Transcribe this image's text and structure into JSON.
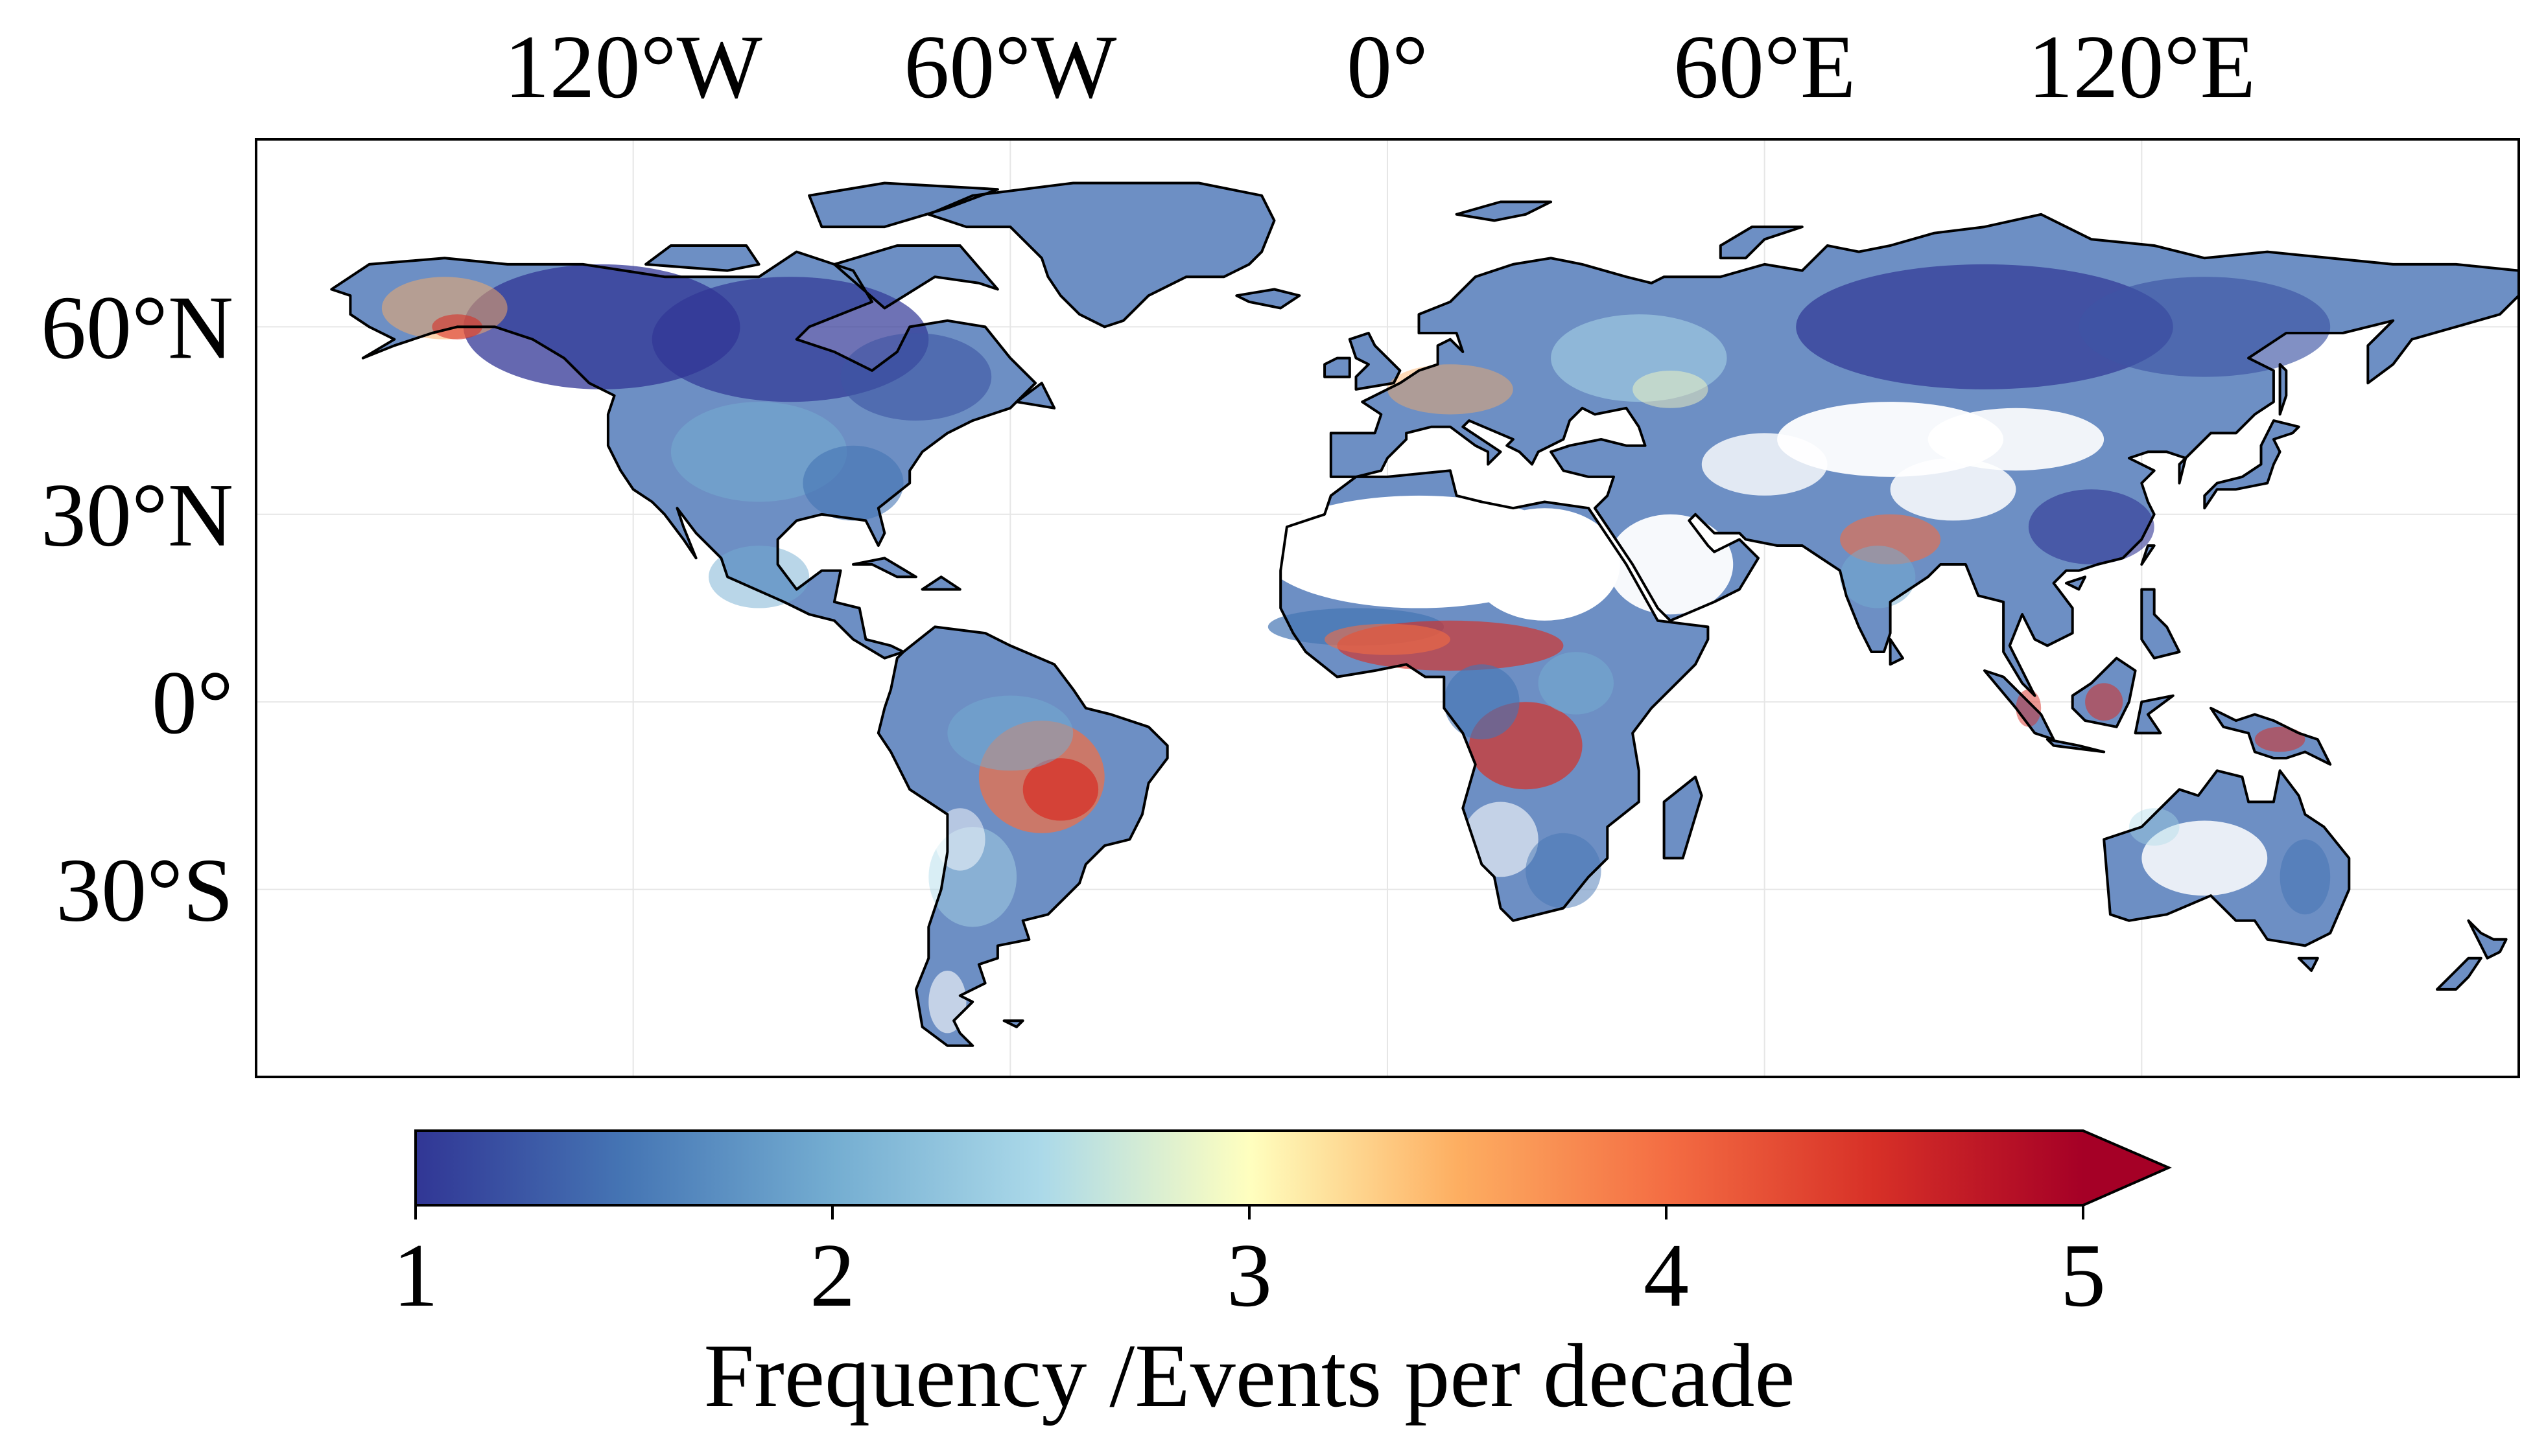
{
  "map": {
    "projection": "equirectangular (Plate Carrée)",
    "lon_range": [
      -180,
      180
    ],
    "lat_range": [
      -60,
      90
    ],
    "gridlines": true,
    "lon_ticks": [
      {
        "lon": -120,
        "label": "120°W"
      },
      {
        "lon": -60,
        "label": "60°W"
      },
      {
        "lon": 0,
        "label": "0°"
      },
      {
        "lon": 60,
        "label": "60°E"
      },
      {
        "lon": 120,
        "label": "120°E"
      }
    ],
    "lat_ticks": [
      {
        "lat": 60,
        "label": "60°N"
      },
      {
        "lat": 30,
        "label": "30°N"
      },
      {
        "lat": 0,
        "label": "0°"
      },
      {
        "lat": -30,
        "label": "30°S"
      }
    ],
    "field_description": "gridded land frequency field; highest values in Amazon basin, central Africa, Sahel, northern India, Indonesia",
    "colors": {
      "coastline": "#000000",
      "gridline": "#e6e6e6",
      "frame": "#000000",
      "background": "#ffffff"
    }
  },
  "colorbar": {
    "label": "Frequency /Events per decade",
    "min": 1,
    "max": 5,
    "extend": "max",
    "ticks": [
      {
        "value": 1,
        "label": "1"
      },
      {
        "value": 2,
        "label": "2"
      },
      {
        "value": 3,
        "label": "3"
      },
      {
        "value": 4,
        "label": "4"
      },
      {
        "value": 5,
        "label": "5"
      }
    ],
    "colormap": "RdYlBu_r",
    "stops": [
      "#313695",
      "#4575b4",
      "#74add1",
      "#abd9e9",
      "#ffffbf",
      "#fdae61",
      "#f46d43",
      "#d73027",
      "#a50026"
    ]
  }
}
